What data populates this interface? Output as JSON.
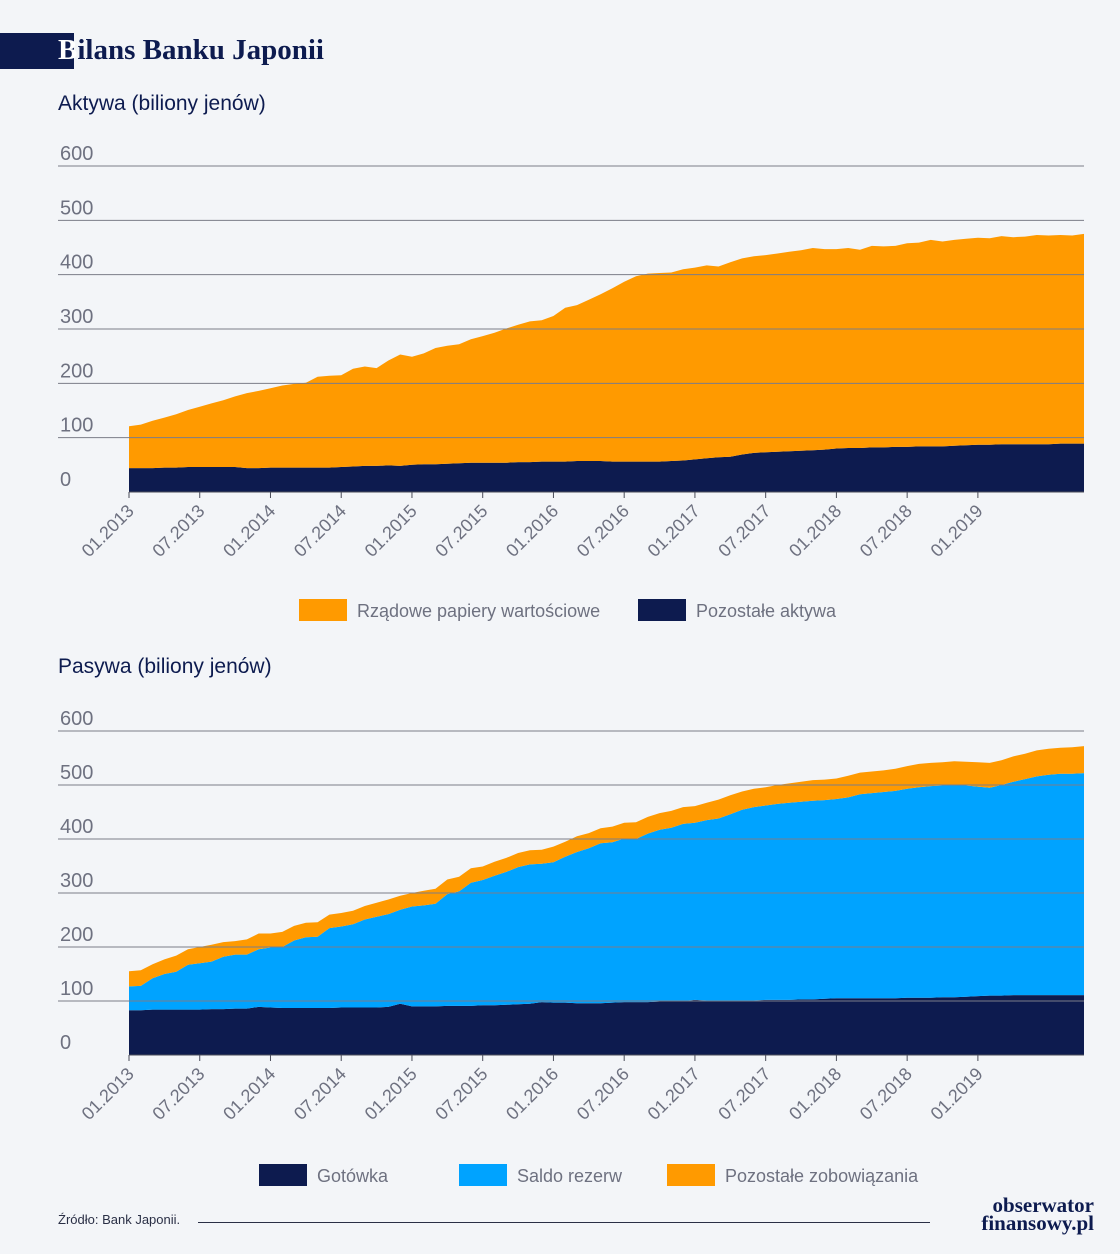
{
  "header": {
    "title_first": "B",
    "title_rest": "ilans Banku Japonii"
  },
  "footer": {
    "source": "Źródło: Bank Japonii.",
    "logo_line1": "obserwator",
    "logo_line2": "finansowy.pl"
  },
  "colors": {
    "orange": "#ff9a00",
    "navy": "#0d1b4f",
    "blue": "#00a3ff"
  },
  "chart_data": [
    {
      "type": "area",
      "stacked": true,
      "title": "Aktywa (biliony jenów)",
      "ylim": [
        0,
        600
      ],
      "yticks": [
        0,
        100,
        200,
        300,
        400,
        500,
        600
      ],
      "grid": true,
      "legend_position": "bottom",
      "x_ticks": [
        "01.2013",
        "07.2013",
        "01.2014",
        "07.2014",
        "01.2015",
        "07.2015",
        "01.2016",
        "07.2016",
        "01.2017",
        "07.2017",
        "01.2018",
        "07.2018",
        "01.2019"
      ],
      "x": [
        "01.2013",
        "02.2013",
        "03.2013",
        "04.2013",
        "05.2013",
        "06.2013",
        "07.2013",
        "08.2013",
        "09.2013",
        "10.2013",
        "11.2013",
        "12.2013",
        "01.2014",
        "02.2014",
        "03.2014",
        "04.2014",
        "05.2014",
        "06.2014",
        "07.2014",
        "08.2014",
        "09.2014",
        "10.2014",
        "11.2014",
        "12.2014",
        "01.2015",
        "02.2015",
        "03.2015",
        "04.2015",
        "05.2015",
        "06.2015",
        "07.2015",
        "08.2015",
        "09.2015",
        "10.2015",
        "11.2015",
        "12.2015",
        "01.2016",
        "02.2016",
        "03.2016",
        "04.2016",
        "05.2016",
        "06.2016",
        "07.2016",
        "08.2016",
        "09.2016",
        "10.2016",
        "11.2016",
        "12.2016",
        "01.2017",
        "02.2017",
        "03.2017",
        "04.2017",
        "05.2017",
        "06.2017",
        "07.2017",
        "08.2017",
        "09.2017",
        "10.2017",
        "11.2017",
        "12.2017",
        "01.2018",
        "02.2018",
        "03.2018",
        "04.2018",
        "05.2018",
        "06.2018",
        "07.2018",
        "08.2018",
        "09.2018",
        "10.2018",
        "11.2018",
        "12.2018",
        "01.2019",
        "02.2019",
        "03.2019",
        "04.2019",
        "05.2019",
        "06.2019",
        "07.2019",
        "08.2019",
        "09.2019",
        "10.2019"
      ],
      "series": [
        {
          "name": "Pozostałe aktywa",
          "color": "#0d1b4f",
          "values": [
            44,
            44,
            44,
            45,
            45,
            46,
            46,
            46,
            46,
            46,
            44,
            44,
            45,
            45,
            45,
            45,
            45,
            45,
            46,
            47,
            48,
            48,
            49,
            48,
            50,
            51,
            51,
            52,
            53,
            54,
            54,
            54,
            54,
            55,
            55,
            56,
            56,
            56,
            57,
            57,
            57,
            56,
            56,
            56,
            56,
            56,
            57,
            58,
            60,
            62,
            64,
            65,
            69,
            72,
            73,
            74,
            75,
            76,
            77,
            78,
            80,
            81,
            81,
            82,
            82,
            83,
            83,
            84,
            84,
            84,
            85,
            86,
            87,
            87,
            88,
            88,
            88,
            88,
            88,
            89,
            89,
            89
          ]
        },
        {
          "name": "Rządowe papiery wartościowe",
          "color": "#ff9a00",
          "values": [
            77,
            80,
            87,
            92,
            98,
            105,
            111,
            117,
            123,
            130,
            138,
            142,
            146,
            151,
            154,
            156,
            167,
            169,
            169,
            180,
            183,
            180,
            193,
            205,
            199,
            204,
            214,
            217,
            219,
            227,
            233,
            239,
            247,
            253,
            259,
            260,
            268,
            283,
            287,
            297,
            307,
            319,
            331,
            341,
            346,
            347,
            347,
            352,
            353,
            355,
            351,
            358,
            361,
            362,
            363,
            365,
            367,
            369,
            372,
            369,
            367,
            368,
            365,
            371,
            370,
            370,
            375,
            375,
            380,
            377,
            379,
            380,
            381,
            380,
            383,
            381,
            382,
            385,
            384,
            384,
            383,
            386
          ]
        }
      ]
    },
    {
      "type": "area",
      "stacked": true,
      "title": "Pasywa (biliony jenów)",
      "ylim": [
        0,
        600
      ],
      "yticks": [
        0,
        100,
        200,
        300,
        400,
        500,
        600
      ],
      "grid": true,
      "legend_position": "bottom",
      "x_ticks": [
        "01.2013",
        "07.2013",
        "01.2014",
        "07.2014",
        "01.2015",
        "07.2015",
        "01.2016",
        "07.2016",
        "01.2017",
        "07.2017",
        "01.2018",
        "07.2018",
        "01.2019"
      ],
      "x": [
        "01.2013",
        "02.2013",
        "03.2013",
        "04.2013",
        "05.2013",
        "06.2013",
        "07.2013",
        "08.2013",
        "09.2013",
        "10.2013",
        "11.2013",
        "12.2013",
        "01.2014",
        "02.2014",
        "03.2014",
        "04.2014",
        "05.2014",
        "06.2014",
        "07.2014",
        "08.2014",
        "09.2014",
        "10.2014",
        "11.2014",
        "12.2014",
        "01.2015",
        "02.2015",
        "03.2015",
        "04.2015",
        "05.2015",
        "06.2015",
        "07.2015",
        "08.2015",
        "09.2015",
        "10.2015",
        "11.2015",
        "12.2015",
        "01.2016",
        "02.2016",
        "03.2016",
        "04.2016",
        "05.2016",
        "06.2016",
        "07.2016",
        "08.2016",
        "09.2016",
        "10.2016",
        "11.2016",
        "12.2016",
        "01.2017",
        "02.2017",
        "03.2017",
        "04.2017",
        "05.2017",
        "06.2017",
        "07.2017",
        "08.2017",
        "09.2017",
        "10.2017",
        "11.2017",
        "12.2017",
        "01.2018",
        "02.2018",
        "03.2018",
        "04.2018",
        "05.2018",
        "06.2018",
        "07.2018",
        "08.2018",
        "09.2018",
        "10.2018",
        "11.2018",
        "12.2018",
        "01.2019",
        "02.2019",
        "03.2019",
        "04.2019",
        "05.2019",
        "06.2019",
        "07.2019",
        "08.2019",
        "09.2019",
        "10.2019"
      ],
      "series": [
        {
          "name": "Gotówka",
          "color": "#0d1b4f",
          "values": [
            83,
            83,
            84,
            84,
            84,
            84,
            84,
            85,
            85,
            86,
            86,
            89,
            88,
            87,
            87,
            87,
            87,
            87,
            88,
            88,
            88,
            88,
            89,
            95,
            90,
            90,
            90,
            91,
            91,
            91,
            92,
            92,
            93,
            94,
            95,
            98,
            97,
            97,
            96,
            96,
            96,
            97,
            98,
            98,
            98,
            99,
            99,
            100,
            102,
            101,
            100,
            101,
            101,
            101,
            102,
            102,
            102,
            103,
            103,
            104,
            105,
            105,
            105,
            105,
            105,
            105,
            106,
            106,
            106,
            107,
            107,
            108,
            109,
            110,
            110,
            111,
            111,
            111,
            111,
            111,
            111,
            111
          ]
        },
        {
          "name": "Saldo rezerw",
          "color": "#00a3ff",
          "values": [
            44,
            45,
            58,
            66,
            70,
            83,
            86,
            88,
            97,
            100,
            100,
            107,
            111,
            113,
            125,
            131,
            132,
            148,
            150,
            154,
            163,
            168,
            172,
            174,
            185,
            187,
            190,
            207,
            212,
            228,
            232,
            240,
            246,
            254,
            258,
            256,
            260,
            270,
            280,
            287,
            296,
            297,
            303,
            302,
            312,
            318,
            322,
            328,
            328,
            334,
            338,
            345,
            353,
            358,
            360,
            363,
            365,
            366,
            368,
            368,
            369,
            372,
            378,
            380,
            382,
            384,
            387,
            390,
            392,
            392,
            393,
            391,
            388,
            385,
            390,
            395,
            400,
            405,
            408,
            410,
            410,
            411
          ]
        },
        {
          "name": "Pozostałe zobowiązania",
          "color": "#ff9a00",
          "values": [
            28,
            29,
            26,
            27,
            30,
            29,
            30,
            31,
            27,
            25,
            28,
            29,
            26,
            28,
            27,
            27,
            27,
            25,
            25,
            25,
            25,
            26,
            27,
            26,
            25,
            27,
            28,
            27,
            27,
            27,
            25,
            26,
            26,
            26,
            26,
            26,
            29,
            28,
            29,
            28,
            28,
            29,
            29,
            31,
            31,
            31,
            31,
            31,
            31,
            32,
            35,
            35,
            34,
            34,
            34,
            35,
            36,
            37,
            38,
            38,
            38,
            40,
            40,
            40,
            40,
            41,
            42,
            43,
            43,
            43,
            44,
            44,
            45,
            46,
            46,
            47,
            47,
            48,
            48,
            48,
            49,
            50
          ]
        }
      ]
    }
  ]
}
